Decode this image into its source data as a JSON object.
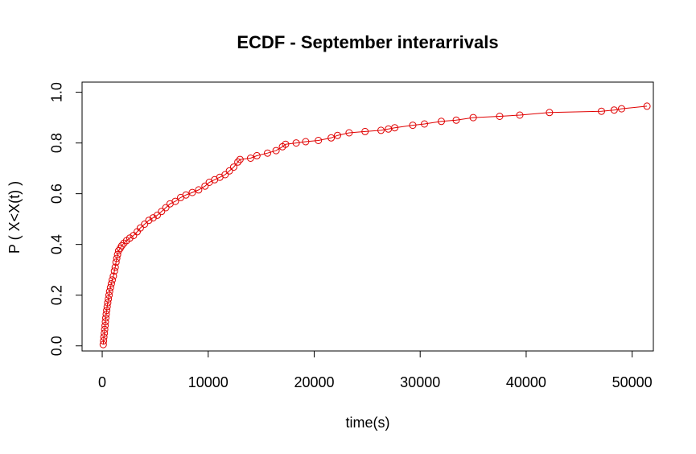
{
  "chart_data": {
    "type": "line",
    "title": "ECDF - September interarrivals",
    "xlabel": "time(s)",
    "ylabel": "P ( X<X(t) )",
    "xlim": [
      -1900,
      52000
    ],
    "ylim": [
      -0.02,
      1.04
    ],
    "x_ticks": [
      0,
      10000,
      20000,
      30000,
      40000,
      50000
    ],
    "x_tick_labels": [
      "0",
      "10000",
      "20000",
      "30000",
      "40000",
      "50000"
    ],
    "y_ticks": [
      0.0,
      0.2,
      0.4,
      0.6,
      0.8,
      1.0
    ],
    "y_tick_labels": [
      "0.0",
      "0.2",
      "0.4",
      "0.6",
      "0.8",
      "1.0"
    ],
    "grid": false,
    "series_color": "#e00000",
    "series": [
      {
        "points": [
          [
            100,
            0.005
          ],
          [
            130,
            0.02
          ],
          [
            160,
            0.035
          ],
          [
            200,
            0.05
          ],
          [
            230,
            0.065
          ],
          [
            270,
            0.08
          ],
          [
            300,
            0.095
          ],
          [
            340,
            0.11
          ],
          [
            380,
            0.125
          ],
          [
            420,
            0.14
          ],
          [
            470,
            0.155
          ],
          [
            520,
            0.17
          ],
          [
            580,
            0.185
          ],
          [
            640,
            0.2
          ],
          [
            700,
            0.215
          ],
          [
            780,
            0.23
          ],
          [
            860,
            0.245
          ],
          [
            950,
            0.26
          ],
          [
            1050,
            0.275
          ],
          [
            1150,
            0.295
          ],
          [
            1230,
            0.31
          ],
          [
            1300,
            0.33
          ],
          [
            1370,
            0.345
          ],
          [
            1450,
            0.36
          ],
          [
            1550,
            0.375
          ],
          [
            1700,
            0.385
          ],
          [
            1850,
            0.395
          ],
          [
            2050,
            0.405
          ],
          [
            2300,
            0.415
          ],
          [
            2600,
            0.425
          ],
          [
            2950,
            0.435
          ],
          [
            3300,
            0.45
          ],
          [
            3600,
            0.465
          ],
          [
            4000,
            0.48
          ],
          [
            4400,
            0.495
          ],
          [
            4800,
            0.505
          ],
          [
            5200,
            0.515
          ],
          [
            5600,
            0.53
          ],
          [
            6000,
            0.545
          ],
          [
            6400,
            0.56
          ],
          [
            6900,
            0.57
          ],
          [
            7400,
            0.585
          ],
          [
            7900,
            0.595
          ],
          [
            8500,
            0.605
          ],
          [
            9100,
            0.615
          ],
          [
            9700,
            0.63
          ],
          [
            10100,
            0.645
          ],
          [
            10600,
            0.655
          ],
          [
            11100,
            0.665
          ],
          [
            11600,
            0.675
          ],
          [
            12000,
            0.69
          ],
          [
            12400,
            0.705
          ],
          [
            12800,
            0.725
          ],
          [
            13000,
            0.735
          ],
          [
            14000,
            0.74
          ],
          [
            14600,
            0.75
          ],
          [
            15600,
            0.76
          ],
          [
            16400,
            0.77
          ],
          [
            17000,
            0.785
          ],
          [
            17300,
            0.795
          ],
          [
            18300,
            0.8
          ],
          [
            19200,
            0.805
          ],
          [
            20400,
            0.81
          ],
          [
            21600,
            0.82
          ],
          [
            22200,
            0.83
          ],
          [
            23300,
            0.84
          ],
          [
            24800,
            0.845
          ],
          [
            26300,
            0.85
          ],
          [
            27000,
            0.855
          ],
          [
            27600,
            0.86
          ],
          [
            29300,
            0.87
          ],
          [
            30400,
            0.875
          ],
          [
            32000,
            0.885
          ],
          [
            33400,
            0.89
          ],
          [
            35000,
            0.9
          ],
          [
            37500,
            0.905
          ],
          [
            39400,
            0.91
          ],
          [
            42200,
            0.92
          ],
          [
            47100,
            0.925
          ],
          [
            48300,
            0.93
          ],
          [
            49000,
            0.935
          ],
          [
            51400,
            0.945
          ]
        ]
      }
    ]
  }
}
